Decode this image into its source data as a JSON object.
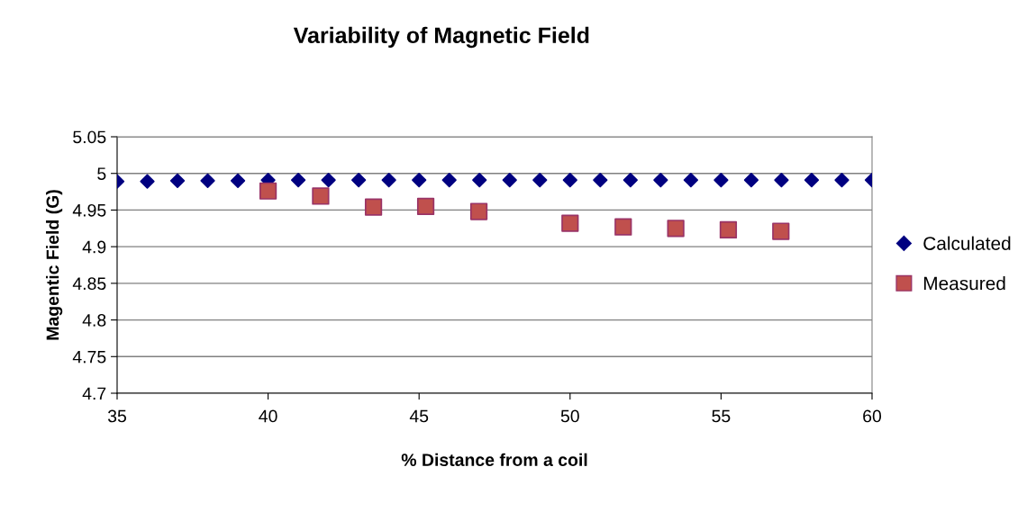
{
  "chart_data": {
    "type": "scatter",
    "title": "Variability of Magnetic Field",
    "xlabel": "% Distance from a coil",
    "ylabel": "Magentic Field (G)",
    "xlim": [
      35,
      60
    ],
    "xticks": [
      35,
      40,
      45,
      50,
      55,
      60
    ],
    "ylim": [
      4.7,
      5.05
    ],
    "yticks": [
      4.7,
      4.75,
      4.8,
      4.85,
      4.9,
      4.95,
      5,
      5.05
    ],
    "grid": "y",
    "legend": "right",
    "series": [
      {
        "name": "Calculated",
        "color": "#000080",
        "marker": "diamond",
        "x": [
          35,
          36,
          37,
          38,
          39,
          40,
          41,
          42,
          43,
          44,
          45,
          46,
          47,
          48,
          49,
          50,
          51,
          52,
          53,
          54,
          55,
          56,
          57,
          58,
          59,
          60
        ],
        "values": [
          4.989,
          4.989,
          4.99,
          4.99,
          4.99,
          4.991,
          4.991,
          4.991,
          4.991,
          4.991,
          4.991,
          4.991,
          4.991,
          4.991,
          4.991,
          4.991,
          4.991,
          4.991,
          4.991,
          4.991,
          4.991,
          4.991,
          4.991,
          4.991,
          4.991,
          4.991
        ]
      },
      {
        "name": "Measured",
        "color": "#c0504d",
        "marker": "square",
        "x": [
          40,
          41.74,
          43.49,
          45.22,
          46.98,
          50,
          51.76,
          53.5,
          55.24,
          56.98
        ],
        "values": [
          4.976,
          4.969,
          4.954,
          4.955,
          4.948,
          4.932,
          4.927,
          4.925,
          4.923,
          4.921
        ]
      }
    ]
  }
}
